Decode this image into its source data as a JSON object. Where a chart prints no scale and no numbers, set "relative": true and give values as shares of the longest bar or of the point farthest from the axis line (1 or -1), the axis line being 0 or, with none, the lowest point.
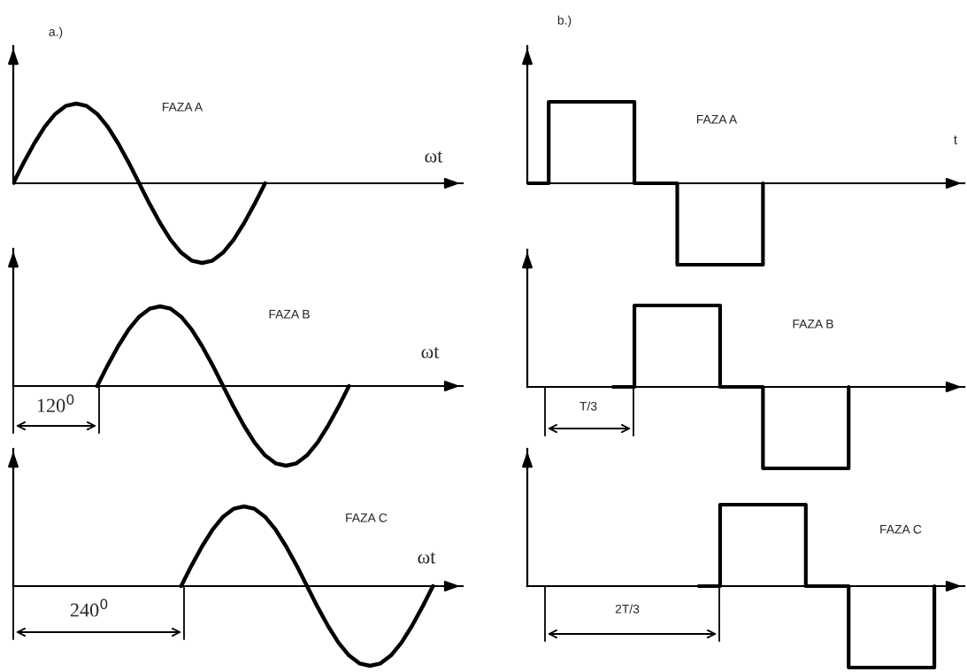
{
  "chart_data": [
    {
      "type": "line",
      "relative": true,
      "color": "#000000",
      "annotations": [
        "a.)",
        "FAZA A",
        "ωt"
      ],
      "categories": [
        null,
        null,
        null,
        null,
        null,
        null,
        null,
        null,
        null,
        null,
        null,
        null,
        null,
        null,
        null,
        null,
        null,
        null,
        null,
        null,
        null,
        null,
        null,
        null,
        null,
        null,
        null,
        null,
        null,
        null,
        null,
        null,
        null,
        null,
        null,
        null,
        null,
        null,
        null,
        null,
        null,
        null,
        null
      ],
      "values": [
        0,
        0.26,
        0.5,
        0.71,
        0.87,
        0.97,
        1,
        0.97,
        0.87,
        0.71,
        0.5,
        0.26,
        0,
        -0.26,
        -0.5,
        -0.71,
        -0.87,
        -0.97,
        -1,
        -0.97,
        -0.87,
        -0.71,
        -0.5,
        -0.26,
        0,
        null,
        null,
        null,
        null,
        null,
        null,
        null,
        null,
        null,
        null,
        null,
        null,
        null,
        null,
        null,
        null,
        null,
        null
      ]
    },
    {
      "type": "step",
      "relative": true,
      "color": "#000000",
      "annotations": [
        "b.)",
        "FAZA A",
        "t"
      ],
      "categories": [
        null,
        null,
        null,
        null,
        null,
        null,
        null,
        null,
        null,
        null,
        null,
        null,
        null,
        null,
        null,
        null,
        null,
        null,
        null,
        null,
        null
      ],
      "values": [
        0,
        1,
        1,
        1,
        1,
        0,
        0,
        -1,
        -1,
        -1,
        -1,
        0,
        null,
        null,
        null,
        null,
        null,
        null,
        null,
        null,
        null
      ]
    },
    {
      "type": "line",
      "relative": true,
      "color": "#000000",
      "annotations": [
        "FAZA B",
        "ωt",
        "120$^{0}$"
      ],
      "categories": [
        null,
        null,
        null,
        null,
        null,
        null,
        null,
        null,
        null,
        null,
        null,
        null,
        null,
        null,
        null,
        null,
        null,
        null,
        null,
        null,
        null,
        null,
        null,
        null,
        null,
        null,
        null,
        null,
        null,
        null,
        null,
        null,
        null,
        null,
        null,
        null,
        null,
        null,
        null,
        null,
        null,
        null,
        null
      ],
      "values": [
        null,
        null,
        null,
        null,
        null,
        null,
        null,
        null,
        0,
        0.26,
        0.5,
        0.71,
        0.87,
        0.97,
        1,
        0.97,
        0.87,
        0.71,
        0.5,
        0.26,
        0,
        -0.26,
        -0.5,
        -0.71,
        -0.87,
        -0.97,
        -1,
        -0.97,
        -0.87,
        -0.71,
        -0.5,
        -0.26,
        0,
        null,
        null,
        null,
        null,
        null,
        null,
        null,
        null,
        null,
        null
      ]
    },
    {
      "type": "step",
      "relative": true,
      "color": "#000000",
      "annotations": [
        "FAZA B",
        "T/3"
      ],
      "categories": [
        null,
        null,
        null,
        null,
        null,
        null,
        null,
        null,
        null,
        null,
        null,
        null,
        null,
        null,
        null,
        null,
        null,
        null,
        null,
        null,
        null
      ],
      "values": [
        null,
        null,
        null,
        null,
        0,
        1,
        1,
        1,
        1,
        0,
        0,
        -1,
        -1,
        -1,
        -1,
        0,
        null,
        null,
        null,
        null,
        null
      ]
    },
    {
      "type": "line",
      "relative": true,
      "color": "#000000",
      "annotations": [
        "FAZA C",
        "ωt",
        "240$^{0}$"
      ],
      "categories": [
        null,
        null,
        null,
        null,
        null,
        null,
        null,
        null,
        null,
        null,
        null,
        null,
        null,
        null,
        null,
        null,
        null,
        null,
        null,
        null,
        null,
        null,
        null,
        null,
        null,
        null,
        null,
        null,
        null,
        null,
        null,
        null,
        null,
        null,
        null,
        null,
        null,
        null,
        null,
        null,
        null,
        null,
        null
      ],
      "values": [
        null,
        null,
        null,
        null,
        null,
        null,
        null,
        null,
        null,
        null,
        null,
        null,
        null,
        null,
        null,
        null,
        0,
        0.26,
        0.5,
        0.71,
        0.87,
        0.97,
        1,
        0.97,
        0.87,
        0.71,
        0.5,
        0.26,
        0,
        -0.26,
        -0.5,
        -0.71,
        -0.87,
        -0.97,
        -1,
        -0.97,
        -0.87,
        -0.71,
        -0.5,
        -0.26,
        0,
        null,
        null
      ]
    },
    {
      "type": "step",
      "relative": true,
      "color": "#000000",
      "annotations": [
        "FAZA C",
        "2T/3"
      ],
      "categories": [
        null,
        null,
        null,
        null,
        null,
        null,
        null,
        null,
        null,
        null,
        null,
        null,
        null,
        null,
        null,
        null,
        null,
        null,
        null,
        null,
        null
      ],
      "values": [
        null,
        null,
        null,
        null,
        null,
        null,
        null,
        null,
        0,
        1,
        1,
        1,
        1,
        0,
        0,
        -1,
        -1,
        -1,
        -1,
        0,
        null
      ]
    }
  ]
}
